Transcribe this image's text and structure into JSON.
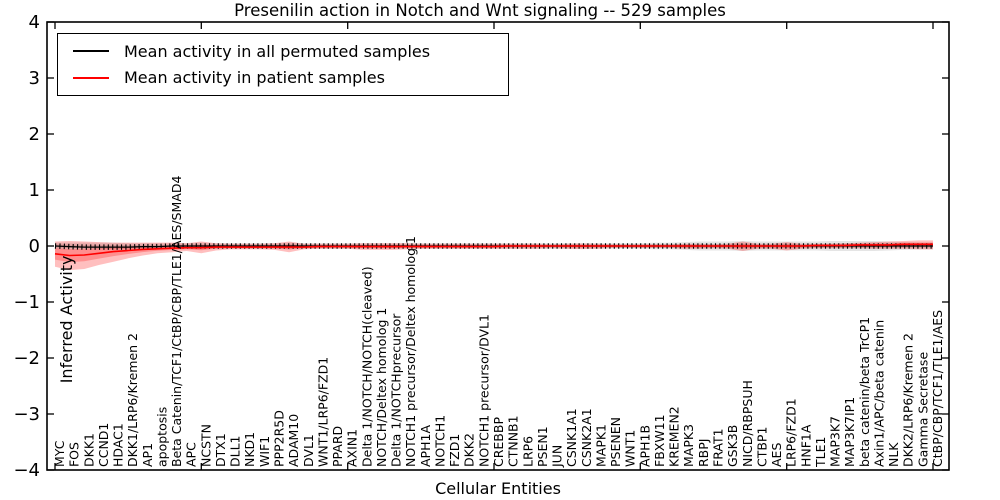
{
  "figure": {
    "background": "#ffffff"
  },
  "chart_data": {
    "type": "line",
    "title": "Presenilin action in Notch and Wnt signaling -- 529 samples",
    "xlabel": "Cellular Entities",
    "ylabel": "Inferred Activity",
    "ylim": [
      -4,
      4
    ],
    "yticks": [
      "4",
      "3",
      "2",
      "1",
      "0",
      "−1",
      "−2",
      "−3",
      "−4"
    ],
    "x_major_tick_every": 10,
    "grid": false,
    "legend_position": "upper left",
    "entities": [
      "MYC",
      "FOS",
      "DKK1",
      "CCND1",
      "HDAC1",
      "DKK1/LRP6/Kremen 2",
      "AP1",
      "apoptosis",
      "Beta Catenin/TCF1/CtBP/CBP/TLE1/AES/SMAD4",
      "APC",
      "NCSTN",
      "DTX1",
      "DLL1",
      "NKD1",
      "WIF1",
      "PPP2R5D",
      "ADAM10",
      "DVL1",
      "WNT1/LRP6/FZD1",
      "PPARD",
      "AXIN1",
      "Delta 1/NOTCH/NOTCH(cleaved)",
      "NOTCH/Deltex homolog 1",
      "Delta 1/NOTCHprecursor",
      "NOTCH1 precursor/Deltex homolog 1",
      "APH1A",
      "NOTCH1",
      "FZD1",
      "DKK2",
      "NOTCH1 precursor/DVL1",
      "CREBBP",
      "CTNNB1",
      "LRP6",
      "PSEN1",
      "JUN",
      "CSNK1A1",
      "CSNK2A1",
      "MAPK1",
      "PSENEN",
      "WNT1",
      "APH1B",
      "FBXW11",
      "KREMEN2",
      "MAPK3",
      "RBPJ",
      "FRAT1",
      "GSK3B",
      "NICD/RBPSUH",
      "CTBP1",
      "AES",
      "LRP6/FZD1",
      "HNF1A",
      "TLE1",
      "MAP3K7",
      "MAP3K7IP1",
      "beta catenin/beta TrCP1",
      "Axin1/APC/beta catenin",
      "NLK",
      "DKK2/LRP6/Kremen 2",
      "Gamma Secretase",
      "CtBP/CBP/TCF1/TLE1/AES"
    ],
    "series": [
      {
        "name": "Mean activity in all permuted samples",
        "color": "#000000",
        "band_color": "rgba(0,0,0,0.10)",
        "values": [
          0,
          -0.01,
          -0.02,
          -0.02,
          -0.02,
          -0.02,
          -0.01,
          -0.01,
          0,
          0,
          0,
          0,
          0,
          0,
          0,
          0,
          0,
          0,
          0,
          0,
          0,
          0,
          0,
          0,
          0,
          0,
          0,
          0,
          0,
          0,
          0,
          0,
          0,
          0,
          0,
          0,
          0,
          0,
          0,
          0,
          0,
          0,
          0,
          0,
          0,
          0,
          0,
          0,
          0,
          0,
          0,
          0,
          0,
          0,
          0,
          0,
          0,
          0,
          0,
          0,
          0
        ],
        "band_hi": [
          0.06,
          0.06,
          0.06,
          0.06,
          0.06,
          0.05,
          0.05,
          0.05,
          0.05,
          0.05,
          0.06,
          0.05,
          0.05,
          0.05,
          0.05,
          0.05,
          0.06,
          0.05,
          0.05,
          0.05,
          0.05,
          0.05,
          0.05,
          0.05,
          0.05,
          0.05,
          0.05,
          0.05,
          0.05,
          0.05,
          0.05,
          0.05,
          0.05,
          0.05,
          0.05,
          0.05,
          0.05,
          0.05,
          0.05,
          0.05,
          0.05,
          0.06,
          0.06,
          0.07,
          0.08,
          0.08,
          0.08,
          0.09,
          0.08,
          0.08,
          0.08,
          0.08,
          0.08,
          0.09,
          0.09,
          0.09,
          0.09,
          0.08,
          0.07,
          0.06,
          0.06
        ],
        "band_lo": [
          -0.06,
          -0.06,
          -0.06,
          -0.06,
          -0.06,
          -0.05,
          -0.05,
          -0.05,
          -0.05,
          -0.05,
          -0.06,
          -0.05,
          -0.05,
          -0.05,
          -0.05,
          -0.05,
          -0.06,
          -0.05,
          -0.05,
          -0.05,
          -0.05,
          -0.05,
          -0.05,
          -0.05,
          -0.05,
          -0.05,
          -0.05,
          -0.05,
          -0.05,
          -0.05,
          -0.05,
          -0.05,
          -0.05,
          -0.05,
          -0.05,
          -0.05,
          -0.05,
          -0.05,
          -0.05,
          -0.05,
          -0.05,
          -0.06,
          -0.06,
          -0.07,
          -0.08,
          -0.08,
          -0.08,
          -0.09,
          -0.08,
          -0.08,
          -0.08,
          -0.08,
          -0.08,
          -0.09,
          -0.09,
          -0.09,
          -0.09,
          -0.08,
          -0.07,
          -0.06,
          -0.06
        ]
      },
      {
        "name": "Mean activity in patient samples",
        "color": "#ff0000",
        "band_color": "rgba(255,0,0,0.25)",
        "values": [
          -0.14,
          -0.17,
          -0.16,
          -0.13,
          -0.1,
          -0.08,
          -0.06,
          -0.05,
          -0.04,
          -0.03,
          -0.03,
          -0.02,
          -0.02,
          -0.02,
          -0.02,
          -0.02,
          -0.02,
          -0.02,
          -0.01,
          -0.01,
          -0.01,
          -0.01,
          -0.01,
          -0.01,
          -0.01,
          -0.01,
          -0.01,
          -0.01,
          -0.01,
          -0.01,
          -0.01,
          0,
          0,
          0,
          0,
          0,
          0,
          0,
          0,
          0,
          0,
          0,
          0,
          0,
          0,
          0,
          0,
          0,
          0,
          0,
          0,
          0,
          0.01,
          0.01,
          0.01,
          0.02,
          0.02,
          0.02,
          0.03,
          0.03,
          0.03
        ],
        "band_hi": [
          0.08,
          0.09,
          0.08,
          0.07,
          0.06,
          0.06,
          0.06,
          0.06,
          0.06,
          0.05,
          0.08,
          0.05,
          0.04,
          0.04,
          0.04,
          0.05,
          0.08,
          0.04,
          0.04,
          0.04,
          0.04,
          0.05,
          0.05,
          0.05,
          0.05,
          0.04,
          0.04,
          0.04,
          0.04,
          0.04,
          0.04,
          0.04,
          0.04,
          0.04,
          0.03,
          0.04,
          0.045,
          0.04,
          0.03,
          0.03,
          0.03,
          0.03,
          0.03,
          0.04,
          0.04,
          0.03,
          0.04,
          0.08,
          0.04,
          0.04,
          0.07,
          0.04,
          0.04,
          0.04,
          0.05,
          0.06,
          0.07,
          0.08,
          0.09,
          0.1,
          0.1
        ],
        "band_lo": [
          -0.37,
          -0.43,
          -0.41,
          -0.34,
          -0.28,
          -0.22,
          -0.17,
          -0.13,
          -0.11,
          -0.09,
          -0.13,
          -0.08,
          -0.06,
          -0.06,
          -0.06,
          -0.07,
          -0.11,
          -0.06,
          -0.05,
          -0.05,
          -0.05,
          -0.07,
          -0.07,
          -0.07,
          -0.06,
          -0.05,
          -0.05,
          -0.05,
          -0.05,
          -0.05,
          -0.05,
          -0.05,
          -0.05,
          -0.05,
          -0.04,
          -0.05,
          -0.055,
          -0.05,
          -0.035,
          -0.035,
          -0.035,
          -0.035,
          -0.035,
          -0.05,
          -0.05,
          -0.04,
          -0.05,
          -0.09,
          -0.05,
          -0.05,
          -0.08,
          -0.05,
          -0.04,
          -0.04,
          -0.04,
          -0.04,
          -0.05,
          -0.05,
          -0.05,
          -0.06,
          -0.06
        ]
      }
    ]
  }
}
